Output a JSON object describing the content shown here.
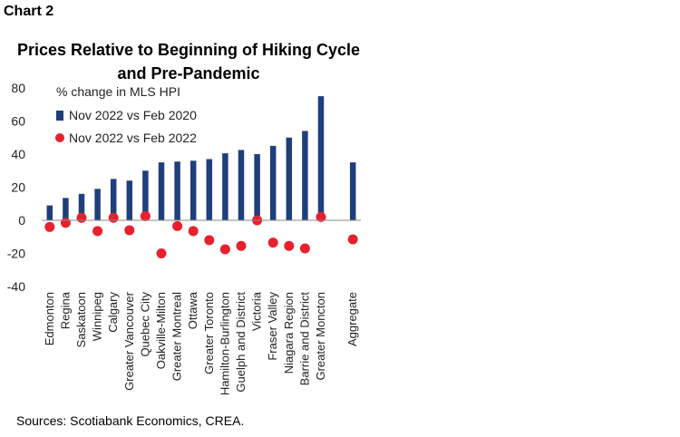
{
  "chart_label": "Chart 2",
  "source": "Sources: Scotiabank Economics, CREA.",
  "chart_data": {
    "type": "bar",
    "title": "Prices Relative to Beginning of Hiking Cycle and Pre-Pandemic",
    "ylabel": "% change in MLS HPI",
    "ylim": [
      -40,
      80
    ],
    "yticks": [
      80,
      60,
      40,
      20,
      0,
      -20,
      -40
    ],
    "grid": false,
    "legend_position": "top-left",
    "categories": [
      "Edmonton",
      "Regina",
      "Saskatoon",
      "Winnipeg",
      "Calgary",
      "Greater Vancouver",
      "Quebec City",
      "Oakville-Milton",
      "Greater Montreal",
      "Ottawa",
      "Greater Toronto",
      "Hamilton-Burlington",
      "Guelph and District",
      "Victoria",
      "Fraser Valley",
      "Niagara Region",
      "Barrie and District",
      "Greater Moncton",
      "",
      "Aggregate"
    ],
    "series": [
      {
        "name": "Nov 2022 vs Feb 2020",
        "kind": "bar",
        "color": "#1f3f7a",
        "values": [
          9,
          13.5,
          16,
          19,
          25,
          24,
          30,
          35,
          35.5,
          36,
          37,
          40.5,
          42.5,
          40,
          45,
          50,
          54,
          75,
          null,
          35
        ]
      },
      {
        "name": "Nov 2022 vs Feb 2022",
        "kind": "scatter",
        "color": "#e8202e",
        "values": [
          -4,
          -1.5,
          1.5,
          -6.5,
          1.5,
          -6,
          2.5,
          -20,
          -3.5,
          -6.5,
          -12,
          -17.5,
          -15.5,
          0,
          -13.5,
          -15.5,
          -17,
          2,
          null,
          -11.5
        ]
      }
    ]
  }
}
